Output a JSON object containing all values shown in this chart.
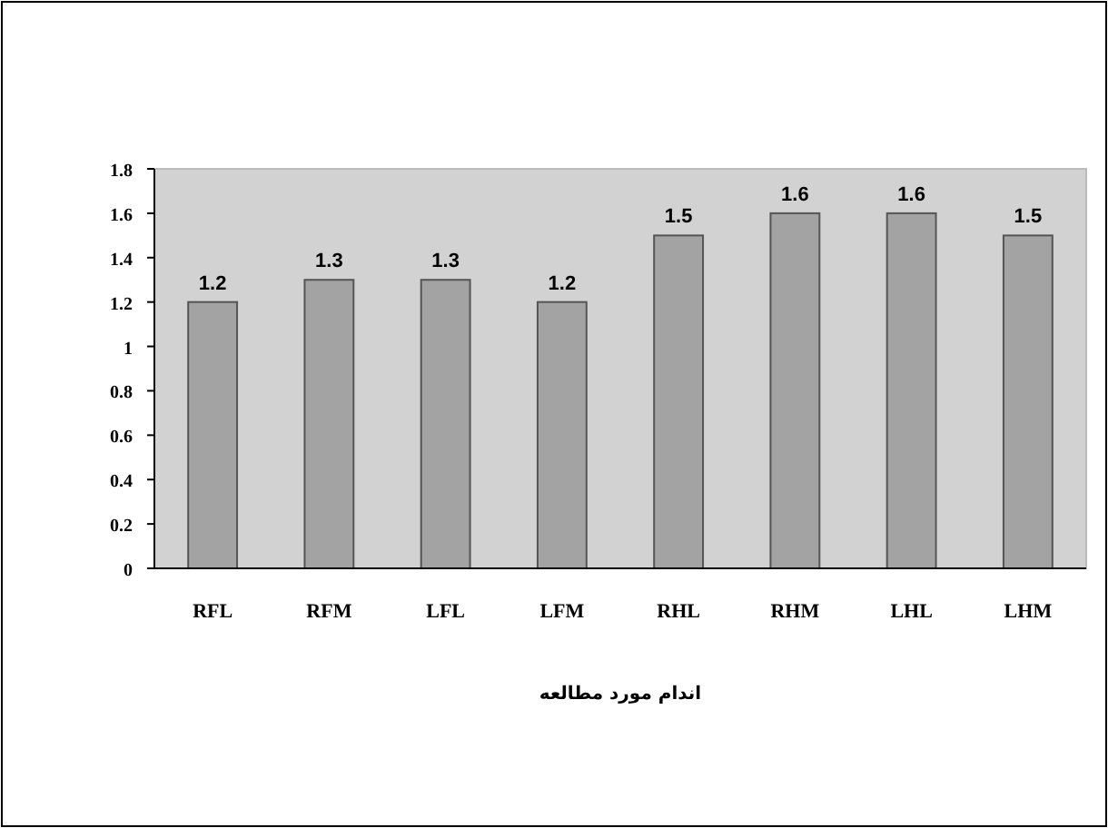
{
  "chart_data": {
    "type": "bar",
    "categories": [
      "RFL",
      "RFM",
      "LFL",
      "LFM",
      "RHL",
      "RHM",
      "LHL",
      "LHM"
    ],
    "values": [
      1.2,
      1.3,
      1.3,
      1.2,
      1.5,
      1.6,
      1.6,
      1.5
    ],
    "color": "#a3a3a3",
    "xlabel": "اندام مورد مطالعه",
    "ylim": [
      0,
      1.8
    ],
    "yticks": [
      0,
      0.2,
      0.4,
      0.6,
      0.8,
      1,
      1.2,
      1.4,
      1.6,
      1.8
    ],
    "data_labels": true,
    "grid": false
  }
}
